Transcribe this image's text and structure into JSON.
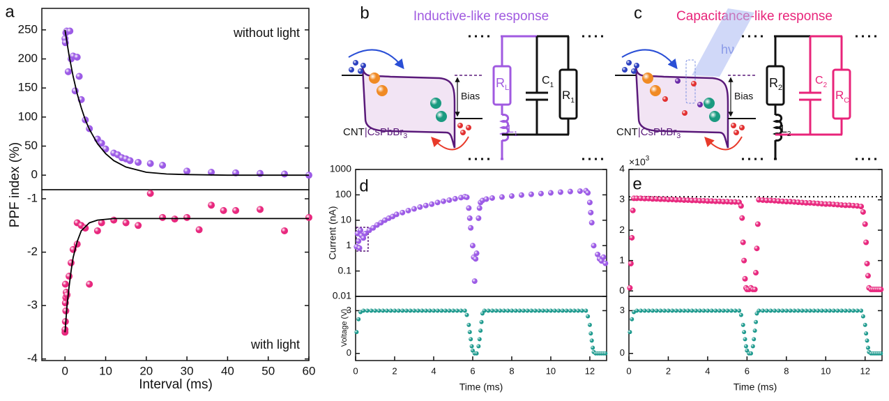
{
  "chart_data": [
    {
      "type": "scatter",
      "panel_label": "a",
      "ylabel": "PPF index (%)",
      "annotation": "without light",
      "xlim": [
        -5.7,
        60
      ],
      "ylim": [
        -25,
        287
      ],
      "yticks": [
        0,
        50,
        100,
        150,
        200,
        250
      ],
      "series": [
        {
          "color": "#9c5be6",
          "x": [
            0,
            0.1,
            0.2,
            0.4,
            0.8,
            1.2,
            1.5,
            2,
            2.5,
            3,
            3.5,
            4,
            5,
            6,
            8,
            9,
            10,
            12,
            13,
            14,
            15,
            16,
            18,
            21,
            24,
            30,
            36,
            42,
            48,
            54,
            60
          ],
          "values": [
            235,
            228,
            245,
            248,
            178,
            248,
            200,
            205,
            145,
            203,
            170,
            130,
            95,
            80,
            62,
            55,
            45,
            38,
            35,
            30,
            28,
            25,
            22,
            20,
            17,
            7,
            5,
            4,
            3,
            2,
            0
          ]
        },
        {
          "style": "line",
          "color": "#000000",
          "x": [
            0,
            1,
            2,
            3,
            4,
            5,
            6,
            8,
            10,
            12,
            15,
            20,
            25,
            30,
            40,
            50,
            60
          ],
          "values": [
            250,
            206,
            170,
            140,
            116,
            95,
            79,
            54,
            37,
            25,
            14,
            5,
            2,
            1,
            0,
            0,
            0
          ]
        }
      ]
    },
    {
      "type": "scatter",
      "xlabel": "Interval (ms)",
      "annotation": "with light",
      "xlim": [
        -5.7,
        60
      ],
      "ylim": [
        -4.03,
        -0.83
      ],
      "xticks": [
        0,
        10,
        20,
        30,
        40,
        50,
        60
      ],
      "yticks": [
        -4,
        -3,
        -2,
        -1
      ],
      "series": [
        {
          "color": "#e8287e",
          "x": [
            0,
            0,
            0.1,
            0.2,
            0.1,
            0.2,
            0.3,
            0.1,
            0.5,
            1,
            1.5,
            2,
            3,
            3,
            4,
            5,
            6,
            8,
            9,
            12,
            15,
            18,
            21,
            24,
            27,
            30,
            33,
            36,
            39,
            42,
            48,
            54,
            60
          ],
          "values": [
            -3.5,
            -3.45,
            -3.3,
            -3.1,
            -2.95,
            -2.85,
            -2.75,
            -2.6,
            -2.8,
            -2.45,
            -2.2,
            -1.95,
            -1.85,
            -1.45,
            -1.5,
            -1.55,
            -2.6,
            -1.6,
            -1.45,
            -1.4,
            -1.45,
            -1.5,
            -0.9,
            -1.35,
            -1.38,
            -1.35,
            -1.58,
            -1.12,
            -1.22,
            -1.22,
            -1.2,
            -1.6,
            -1.35
          ]
        },
        {
          "style": "line",
          "color": "#000000",
          "x": [
            0,
            0.5,
            1,
            1.5,
            2,
            3,
            4,
            6,
            8,
            12,
            20,
            40,
            60
          ],
          "values": [
            -3.5,
            -3.0,
            -2.65,
            -2.35,
            -2.1,
            -1.8,
            -1.6,
            -1.45,
            -1.4,
            -1.37,
            -1.37,
            -1.37,
            -1.37
          ]
        }
      ]
    },
    {
      "type": "scatter",
      "panel_label": "d",
      "ylabel": "Current (nA)",
      "log_y": true,
      "xlim": [
        0,
        12.86
      ],
      "ylim": [
        0.01,
        1000
      ],
      "yticks": [
        0.01,
        0.1,
        1,
        10,
        100,
        1000
      ],
      "series": [
        {
          "color": "#9c5be6",
          "x": [
            0.05,
            0.1,
            0.15,
            0.2,
            0.25,
            0.3,
            0.4,
            0.5,
            0.7,
            0.9,
            1.1,
            1.3,
            1.5,
            1.7,
            1.9,
            2.1,
            2.4,
            2.7,
            3,
            3.3,
            3.6,
            3.9,
            4.2,
            4.5,
            4.8,
            5.1,
            5.4,
            5.6,
            5.7,
            5.8,
            5.85,
            5.9,
            6,
            6.05,
            6.1,
            6.15,
            6.2,
            6.3,
            6.35,
            6.4,
            6.5,
            6.7,
            7,
            7.5,
            8,
            8.5,
            9,
            9.5,
            10,
            10.5,
            11,
            11.5,
            11.8,
            11.9,
            12,
            12.05,
            12.1,
            12.2,
            12.4,
            12.5,
            12.6,
            12.7,
            12.8
          ],
          "values": [
            0.9,
            3,
            1.5,
            0.8,
            4,
            2.5,
            2,
            3,
            4,
            5,
            6.5,
            8,
            10,
            12,
            14,
            17,
            20,
            24,
            28,
            33,
            38,
            43,
            50,
            56,
            62,
            70,
            78,
            85,
            80,
            30,
            12,
            5,
            1,
            0.35,
            0.04,
            0.3,
            0.5,
            12,
            30,
            50,
            60,
            68,
            75,
            82,
            90,
            98,
            105,
            112,
            120,
            128,
            135,
            140,
            145,
            120,
            50,
            20,
            8,
            1,
            0.45,
            0.3,
            0.25,
            0.35,
            0.2
          ]
        }
      ]
    },
    {
      "type": "scatter",
      "ylabel": "Voltage (V)",
      "xlabel": "Time (ms)",
      "xlim": [
        0,
        12.86
      ],
      "ylim": [
        -0.5,
        4
      ],
      "xticks": [
        0,
        2,
        4,
        6,
        8,
        10,
        12
      ],
      "yticks": [
        0,
        3
      ],
      "series": [
        {
          "color": "#1e9a8e",
          "x": [
            0.05,
            0.15,
            0.25,
            0.4,
            0.6,
            0.8,
            1,
            1.2,
            1.4,
            1.6,
            1.8,
            2,
            2.2,
            2.4,
            2.6,
            2.8,
            3,
            3.2,
            3.4,
            3.6,
            3.8,
            4,
            4.2,
            4.4,
            4.6,
            4.8,
            5,
            5.2,
            5.4,
            5.6,
            5.7,
            5.8,
            5.85,
            5.9,
            5.95,
            6,
            6.1,
            6.2,
            6.3,
            6.35,
            6.4,
            6.45,
            6.5,
            6.6,
            6.8,
            7,
            7.2,
            7.4,
            7.6,
            7.8,
            8,
            8.2,
            8.4,
            8.6,
            8.8,
            9,
            9.2,
            9.4,
            9.6,
            9.8,
            10,
            10.2,
            10.4,
            10.6,
            10.8,
            11,
            11.2,
            11.4,
            11.6,
            11.8,
            11.9,
            12,
            12.05,
            12.1,
            12.15,
            12.2,
            12.3,
            12.4,
            12.5,
            12.6,
            12.7,
            12.8
          ],
          "values": [
            1.5,
            2.4,
            2.9,
            3,
            3,
            3,
            3,
            3,
            3,
            3,
            3,
            3,
            3,
            3,
            3,
            3,
            3,
            3,
            3,
            3,
            3,
            3,
            3,
            3,
            3,
            3,
            3,
            3,
            3,
            3,
            2.7,
            2,
            1.5,
            1,
            0.5,
            0.2,
            0,
            0,
            0.5,
            1,
            1.6,
            2.2,
            2.8,
            3,
            3,
            3,
            3,
            3,
            3,
            3,
            3,
            3,
            3,
            3,
            3,
            3,
            3,
            3,
            3,
            3,
            3,
            3,
            3,
            3,
            3,
            3,
            3,
            3,
            3,
            3,
            2.6,
            2,
            1.4,
            0.9,
            0.4,
            0.1,
            0,
            0,
            0,
            0,
            0,
            0
          ]
        }
      ]
    },
    {
      "type": "scatter",
      "panel_label": "e",
      "y_multiplier": {
        "base": "×10",
        "exponent": "3"
      },
      "xlim": [
        0,
        12.86
      ],
      "ylim": [
        -0.18,
        4
      ],
      "yticks": [
        0,
        1,
        2,
        3,
        4
      ],
      "reference_line": 3.1,
      "series": [
        {
          "color": "#e8287e",
          "x": [
            0.05,
            0.1,
            0.15,
            0.2,
            0.25,
            0.4,
            0.6,
            0.8,
            1,
            1.2,
            1.4,
            1.6,
            1.8,
            2,
            2.2,
            2.4,
            2.6,
            2.8,
            3,
            3.2,
            3.4,
            3.6,
            3.8,
            4,
            4.2,
            4.4,
            4.6,
            4.8,
            5,
            5.2,
            5.4,
            5.6,
            5.7,
            5.75,
            5.8,
            5.85,
            5.9,
            5.95,
            6,
            6.1,
            6.2,
            6.3,
            6.4,
            6.45,
            6.5,
            6.55,
            6.6,
            6.8,
            7,
            7.2,
            7.4,
            7.6,
            7.8,
            8,
            8.2,
            8.4,
            8.6,
            8.8,
            9,
            9.2,
            9.4,
            9.6,
            9.8,
            10,
            10.2,
            10.4,
            10.6,
            10.8,
            11,
            11.2,
            11.4,
            11.6,
            11.8,
            11.9,
            12,
            12.05,
            12.1,
            12.15,
            12.2,
            12.3,
            12.4,
            12.5,
            12.6,
            12.7,
            12.8
          ],
          "values": [
            0.1,
            0.9,
            1.75,
            2.65,
            3.05,
            3.05,
            3.05,
            3.04,
            3.04,
            3.03,
            3.03,
            3.02,
            3.02,
            3.01,
            3.01,
            3.0,
            3.0,
            2.99,
            2.99,
            2.98,
            2.98,
            2.97,
            2.97,
            2.96,
            2.96,
            2.95,
            2.95,
            2.94,
            2.94,
            2.93,
            2.93,
            2.92,
            2.8,
            2.4,
            1.6,
            1.0,
            0.4,
            0.1,
            0.05,
            0.05,
            0.1,
            0.05,
            0.05,
            0.6,
            1.4,
            2.2,
            3.0,
            2.99,
            2.98,
            2.98,
            2.97,
            2.96,
            2.95,
            2.94,
            2.94,
            2.93,
            2.92,
            2.91,
            2.9,
            2.9,
            2.89,
            2.88,
            2.87,
            2.86,
            2.86,
            2.85,
            2.84,
            2.83,
            2.82,
            2.82,
            2.81,
            2.8,
            2.78,
            2.6,
            2.2,
            1.6,
            0.9,
            0.5,
            0.1,
            0.05,
            0.05,
            0.05,
            0.05,
            0.05,
            0.05
          ]
        }
      ]
    },
    {
      "type": "scatter",
      "xlabel": "Time (ms)",
      "xlim": [
        0,
        12.86
      ],
      "ylim": [
        -0.5,
        4
      ],
      "xticks": [
        0,
        2,
        4,
        6,
        8,
        10,
        12
      ],
      "yticks": [
        0,
        3
      ],
      "series": [
        {
          "color": "#1e9a8e",
          "x": [
            0.05,
            0.15,
            0.25,
            0.4,
            0.6,
            0.8,
            1,
            1.2,
            1.4,
            1.6,
            1.8,
            2,
            2.2,
            2.4,
            2.6,
            2.8,
            3,
            3.2,
            3.4,
            3.6,
            3.8,
            4,
            4.2,
            4.4,
            4.6,
            4.8,
            5,
            5.2,
            5.4,
            5.6,
            5.7,
            5.8,
            5.85,
            5.9,
            5.95,
            6,
            6.1,
            6.2,
            6.3,
            6.35,
            6.4,
            6.45,
            6.5,
            6.6,
            6.8,
            7,
            7.2,
            7.4,
            7.6,
            7.8,
            8,
            8.2,
            8.4,
            8.6,
            8.8,
            9,
            9.2,
            9.4,
            9.6,
            9.8,
            10,
            10.2,
            10.4,
            10.6,
            10.8,
            11,
            11.2,
            11.4,
            11.6,
            11.8,
            11.9,
            12,
            12.05,
            12.1,
            12.15,
            12.2,
            12.3,
            12.4,
            12.5,
            12.6,
            12.7,
            12.8
          ],
          "values": [
            1.5,
            2.4,
            2.9,
            3,
            3,
            3,
            3,
            3,
            3,
            3,
            3,
            3,
            3,
            3,
            3,
            3,
            3,
            3,
            3,
            3,
            3,
            3,
            3,
            3,
            3,
            3,
            3,
            3,
            3,
            3,
            2.7,
            2,
            1.5,
            1,
            0.5,
            0.2,
            0,
            0,
            0.5,
            1,
            1.6,
            2.2,
            2.8,
            3,
            3,
            3,
            3,
            3,
            3,
            3,
            3,
            3,
            3,
            3,
            3,
            3,
            3,
            3,
            3,
            3,
            3,
            3,
            3,
            3,
            3,
            3,
            3,
            3,
            3,
            3,
            2.6,
            2,
            1.4,
            0.9,
            0.4,
            0.1,
            0,
            0,
            0,
            0,
            0,
            0
          ]
        }
      ]
    }
  ],
  "diagrams": [
    {
      "label": "b",
      "title": "Inductive-like response",
      "bias": "Bias",
      "material": [
        "CNT",
        "|CsPbBr",
        "3"
      ],
      "components": [
        [
          "R",
          "L"
        ],
        [
          "L",
          "1"
        ],
        [
          "C",
          "1"
        ],
        [
          "R",
          "1"
        ]
      ]
    },
    {
      "label": "c",
      "title": "Capacitance-like response",
      "bias": "Bias",
      "material": [
        "CNT",
        "|CsPbBr",
        "3"
      ],
      "light": "hν",
      "components": [
        [
          "R",
          "2"
        ],
        [
          "L",
          "2"
        ],
        [
          "C",
          "2"
        ],
        [
          "R",
          "C"
        ]
      ]
    }
  ]
}
